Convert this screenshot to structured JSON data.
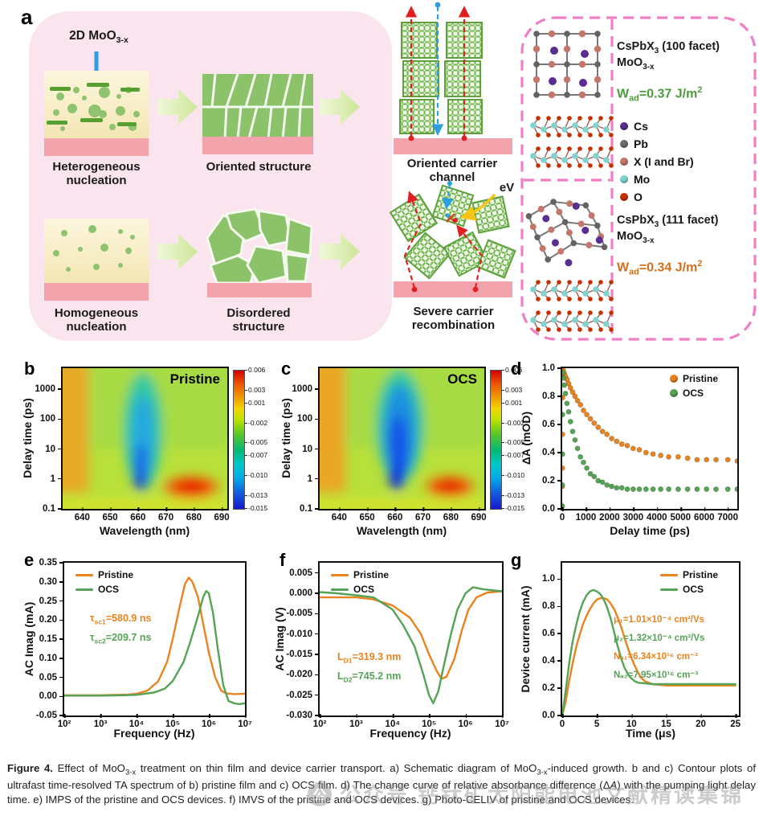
{
  "colors": {
    "pristine": "#E8831F",
    "ocs": "#55A355"
  },
  "panel_a": {
    "label": "a",
    "moo_label": [
      {
        "t": "2D MoO"
      },
      {
        "t": "3-x",
        "s": "sub"
      }
    ],
    "hetero_label": "Heterogeneous nucleation",
    "oriented_label": "Oriented structure",
    "homo_label": "Homogeneous nucleation",
    "disordered_label": "Disordered structure",
    "channel_label": "Oriented carrier channel",
    "recomb_label": "Severe carrier recombination",
    "ev_label": "eV",
    "facet100": [
      {
        "t": "CsPbX"
      },
      {
        "t": "3",
        "s": "sub"
      },
      {
        "t": " (100 facet)"
      }
    ],
    "facet100_moo": [
      {
        "t": "MoO"
      },
      {
        "t": "3-x",
        "s": "sub"
      }
    ],
    "wad100": [
      {
        "t": "W"
      },
      {
        "t": "ad",
        "s": "sub"
      },
      {
        "t": "=0.37 J/m"
      },
      {
        "t": "2",
        "s": "sup"
      }
    ],
    "wad100_color": "#4e9b3e",
    "facet111": [
      {
        "t": "CsPbX"
      },
      {
        "t": "3",
        "s": "sub"
      },
      {
        "t": " (111 facet)"
      }
    ],
    "facet111_moo": [
      {
        "t": "MoO"
      },
      {
        "t": "3-x",
        "s": "sub"
      }
    ],
    "wad111": [
      {
        "t": "W"
      },
      {
        "t": "ad",
        "s": "sub"
      },
      {
        "t": "=0.34 J/m"
      },
      {
        "t": "2",
        "s": "sup"
      }
    ],
    "wad111_color": "#d2701e",
    "legend": [
      {
        "name": "Cs",
        "color": "#5a2e91"
      },
      {
        "name": "Pb",
        "color": "#6e6e6e"
      },
      {
        "name": "X (I and Br)",
        "color": "#c4766a"
      },
      {
        "name": "Mo",
        "color": "#7fd4cf"
      },
      {
        "name": "O",
        "color": "#c63000"
      }
    ]
  },
  "panels": {
    "b": {
      "label": "b",
      "title": "Pristine",
      "xlabel": "Wavelength (nm)",
      "ylabel": "Delay time (ps)",
      "xticks": [
        "640",
        "650",
        "660",
        "670",
        "680",
        "690"
      ],
      "yticks": [
        "1000",
        "100",
        "10",
        "1",
        "0.1"
      ],
      "cbar": [
        "0.006",
        "0.003",
        "0.001",
        "-0.002",
        "-0.005",
        "-0.007",
        "-0.010",
        "-0.013",
        "-0.015"
      ]
    },
    "c": {
      "label": "c",
      "title": "OCS",
      "xlabel": "Wavelength (nm)",
      "ylabel": "Delay time (ps)",
      "xticks": [
        "640",
        "650",
        "660",
        "670",
        "680",
        "690"
      ],
      "yticks": [
        "1000",
        "100",
        "10",
        "1",
        "0.1"
      ],
      "cbar": [
        "0.006",
        "0.003",
        "0.001",
        "-0.002",
        "-0.005",
        "-0.007",
        "-0.010",
        "-0.013",
        "-0.015"
      ]
    },
    "d": {
      "label": "d",
      "xlabel": "Delay time (ps)",
      "ylabel": "ΔA (mOD)",
      "xticks": [
        "0",
        "1000",
        "2000",
        "3000",
        "4000",
        "5000",
        "6000",
        "7000"
      ],
      "yticks": [
        "1.0",
        "0.8",
        "0.6",
        "0.4",
        "0.2",
        "0.0"
      ],
      "legend": [
        "Pristine",
        "OCS"
      ]
    },
    "e": {
      "label": "e",
      "xlabel": "Frequency (Hz)",
      "ylabel": "AC Imag (mA)",
      "xticks": [
        "10²",
        "10³",
        "10⁴",
        "10⁵",
        "10⁶",
        "10⁷"
      ],
      "yticks": [
        "0.35",
        "0.30",
        "0.25",
        "0.20",
        "0.15",
        "0.10",
        "0.05",
        "0.00",
        "-0.05"
      ],
      "legend": [
        "Pristine",
        "OCS"
      ],
      "ann1": [
        {
          "t": "τ"
        },
        {
          "t": "sc1",
          "s": "sub"
        },
        {
          "t": "=580.9 ns"
        }
      ],
      "ann2": [
        {
          "t": "τ"
        },
        {
          "t": "sc2",
          "s": "sub"
        },
        {
          "t": "=209.7 ns"
        }
      ]
    },
    "f": {
      "label": "f",
      "xlabel": "Frequency (Hz)",
      "ylabel": "AC Imag (V)",
      "xticks": [
        "10²",
        "10³",
        "10⁴",
        "10⁵",
        "10⁶",
        "10⁷"
      ],
      "yticks": [
        "0.005",
        "0.000",
        "-0.005",
        "-0.010",
        "-0.015",
        "-0.020",
        "-0.025",
        "-0.030"
      ],
      "legend": [
        "Pristine",
        "OCS"
      ],
      "ann1": [
        {
          "t": "L"
        },
        {
          "t": "D1",
          "s": "sub"
        },
        {
          "t": "=319.3 nm"
        }
      ],
      "ann2": [
        {
          "t": "L"
        },
        {
          "t": "D2",
          "s": "sub"
        },
        {
          "t": "=745.2 nm"
        }
      ]
    },
    "g": {
      "label": "g",
      "xlabel": "Time (μs)",
      "ylabel": "Device current (mA)",
      "xticks": [
        "0",
        "5",
        "10",
        "15",
        "20",
        "25"
      ],
      "yticks": [
        "1.0",
        "0.8",
        "0.6",
        "0.4",
        "0.2",
        "0.0"
      ],
      "legend": [
        "Pristine",
        "OCS"
      ],
      "ann": [
        {
          "text": "μ₁=1.01×10⁻⁴ cm²/Vs",
          "color": "#E8831F"
        },
        {
          "text": "μ₂=1.32×10⁻⁴ cm²/Vs",
          "color": "#55A355"
        },
        {
          "text": "Nₐ₁=6.34×10¹⁶ cm⁻³",
          "color": "#E8831F"
        },
        {
          "text": "Nₐ₂=7.95×10¹⁶ cm⁻³",
          "color": "#55A355"
        }
      ]
    }
  },
  "chart_data": [
    {
      "id": "hm-b",
      "type": "heatmap",
      "title": "Pristine",
      "xlabel": "Wavelength (nm)",
      "ylabel": "Delay time (ps)",
      "x_range_nm": [
        633,
        692
      ],
      "y_range_ps": [
        0.1,
        5000
      ],
      "y_scale": "log",
      "colorbar_range": [
        -0.015,
        0.006
      ],
      "colorbar_ticks": [
        0.006,
        0.003,
        0.001,
        -0.002,
        -0.005,
        -0.007,
        -0.01,
        -0.013,
        -0.015
      ],
      "features": [
        {
          "name": "ground-state bleach (negative blue band)",
          "wavelength_nm": [
            648,
            668
          ],
          "delay_ps": [
            0.4,
            500
          ],
          "min_value": -0.015
        },
        {
          "name": "positive band at short wavelength edge",
          "wavelength_nm": [
            633,
            641
          ],
          "value": 0.004
        },
        {
          "name": "positive photoinduced absorption blob",
          "wavelength_nm": [
            668,
            690
          ],
          "delay_ps": [
            0.3,
            1.5
          ],
          "max_value": 0.006
        }
      ]
    },
    {
      "id": "hm-c",
      "type": "heatmap",
      "title": "OCS",
      "xlabel": "Wavelength (nm)",
      "ylabel": "Delay time (ps)",
      "x_range_nm": [
        633,
        692
      ],
      "y_range_ps": [
        0.1,
        5000
      ],
      "y_scale": "log",
      "colorbar_range": [
        -0.015,
        0.006
      ],
      "colorbar_ticks": [
        0.006,
        0.003,
        0.001,
        -0.002,
        -0.005,
        -0.007,
        -0.01,
        -0.013,
        -0.015
      ],
      "features": [
        {
          "name": "ground-state bleach (negative blue band, wider/longer-lived than pristine)",
          "wavelength_nm": [
            648,
            670
          ],
          "delay_ps": [
            0.4,
            2000
          ],
          "min_value": -0.015
        },
        {
          "name": "positive band at short wavelength edge",
          "wavelength_nm": [
            633,
            641
          ],
          "value": 0.004
        },
        {
          "name": "positive photoinduced absorption blob",
          "wavelength_nm": [
            670,
            690
          ],
          "delay_ps": [
            0.3,
            1.5
          ],
          "max_value": 0.006
        }
      ]
    },
    {
      "id": "chart-d",
      "type": "scatter",
      "xlabel": "Delay time (ps)",
      "ylabel": "ΔA (mOD)",
      "xlim": [
        0,
        7400
      ],
      "ylim": [
        0,
        1.0
      ],
      "series": [
        {
          "name": "Pristine",
          "color": "#E8831F",
          "x": [
            2,
            5,
            10,
            15,
            20,
            50,
            90,
            140,
            200,
            270,
            350,
            440,
            540,
            650,
            770,
            900,
            1040,
            1190,
            1350,
            1520,
            1700,
            1890,
            2090,
            2300,
            2520,
            2750,
            3000,
            3260,
            3540,
            3840,
            4160,
            4500,
            4900,
            5300,
            5700,
            6100,
            6500,
            7000,
            7400
          ],
          "y": [
            0.16,
            0.29,
            0.53,
            0.79,
            0.99,
            0.98,
            0.96,
            0.94,
            0.92,
            0.89,
            0.86,
            0.83,
            0.8,
            0.77,
            0.74,
            0.7,
            0.67,
            0.64,
            0.61,
            0.58,
            0.55,
            0.53,
            0.5,
            0.48,
            0.46,
            0.45,
            0.43,
            0.42,
            0.4,
            0.39,
            0.38,
            0.37,
            0.37,
            0.36,
            0.35,
            0.35,
            0.35,
            0.35,
            0.34
          ]
        },
        {
          "name": "OCS",
          "color": "#55A355",
          "x": [
            2,
            5,
            10,
            15,
            20,
            50,
            90,
            140,
            200,
            270,
            350,
            440,
            540,
            650,
            770,
            900,
            1040,
            1190,
            1350,
            1520,
            1700,
            1890,
            2090,
            2300,
            2520,
            2750,
            3000,
            3260,
            3540,
            3840,
            4160,
            4500,
            4900,
            5300,
            5700,
            6100,
            6500,
            7000,
            7400
          ],
          "y": [
            0.02,
            0.17,
            0.39,
            0.67,
            0.97,
            0.93,
            0.88,
            0.82,
            0.75,
            0.69,
            0.62,
            0.55,
            0.49,
            0.43,
            0.37,
            0.33,
            0.29,
            0.25,
            0.23,
            0.2,
            0.19,
            0.17,
            0.16,
            0.15,
            0.15,
            0.14,
            0.14,
            0.14,
            0.14,
            0.14,
            0.14,
            0.14,
            0.14,
            0.14,
            0.14,
            0.14,
            0.14,
            0.14,
            0.14
          ]
        }
      ]
    },
    {
      "id": "chart-e",
      "type": "line",
      "xscale": "log",
      "xlabel": "Frequency (Hz)",
      "ylabel": "AC Imag (mA)",
      "xlim": [
        100,
        10000000
      ],
      "ylim": [
        -0.05,
        0.35
      ],
      "series": [
        {
          "name": "Pristine",
          "color": "#E8831F",
          "x": [
            100,
            300,
            1000,
            3000,
            6000,
            10000,
            20000,
            40000,
            70000,
            100000,
            160000,
            220000,
            280000,
            350000,
            500000,
            700000,
            1000000,
            1500000,
            2200000,
            3000000,
            5000000,
            10000000
          ],
          "y": [
            0.003,
            0.003,
            0.003,
            0.004,
            0.005,
            0.007,
            0.015,
            0.04,
            0.09,
            0.15,
            0.24,
            0.295,
            0.311,
            0.3,
            0.26,
            0.19,
            0.115,
            0.05,
            0.015,
            0.008,
            0.006,
            0.007
          ]
        },
        {
          "name": "OCS",
          "color": "#55A355",
          "x": [
            100,
            1000,
            5000,
            10000,
            30000,
            60000,
            100000,
            200000,
            300000,
            500000,
            700000,
            850000,
            1000000,
            1300000,
            1800000,
            2500000,
            3500000,
            5000000,
            7000000,
            10000000
          ],
          "y": [
            0.002,
            0.002,
            0.003,
            0.004,
            0.01,
            0.02,
            0.04,
            0.09,
            0.14,
            0.21,
            0.26,
            0.276,
            0.27,
            0.22,
            0.12,
            0.03,
            -0.012,
            -0.018,
            -0.02,
            -0.018
          ]
        }
      ],
      "annotations": [
        {
          "text": "τ_sc1=580.9 ns"
        },
        {
          "text": "τ_sc2=209.7 ns"
        }
      ]
    },
    {
      "id": "chart-f",
      "type": "line",
      "xscale": "log",
      "xlabel": "Frequency (Hz)",
      "ylabel": "AC Imag (V)",
      "xlim": [
        100,
        10000000
      ],
      "ylim": [
        -0.03,
        0.0075
      ],
      "series": [
        {
          "name": "Pristine",
          "color": "#E8831F",
          "x": [
            100,
            300,
            1000,
            3000,
            10000,
            30000,
            60000,
            100000,
            160000,
            220000,
            300000,
            500000,
            800000,
            1200000,
            2000000,
            4000000,
            10000000
          ],
          "y": [
            -0.001,
            -0.001,
            -0.001,
            -0.0015,
            -0.003,
            -0.006,
            -0.01,
            -0.015,
            -0.019,
            -0.021,
            -0.0205,
            -0.016,
            -0.009,
            -0.004,
            -0.001,
            0.0002,
            0.0005
          ]
        },
        {
          "name": "OCS",
          "color": "#55A355",
          "x": [
            100,
            300,
            1000,
            3000,
            10000,
            20000,
            40000,
            70000,
            100000,
            130000,
            180000,
            250000,
            400000,
            600000,
            1000000,
            1600000,
            3000000,
            10000000
          ],
          "y": [
            0.0003,
            0,
            -0.0005,
            -0.001,
            -0.004,
            -0.008,
            -0.013,
            -0.02,
            -0.025,
            -0.027,
            -0.024,
            -0.018,
            -0.01,
            -0.004,
            0,
            0.0015,
            0.001,
            0.0005
          ]
        }
      ],
      "annotations": [
        {
          "text": "L_D1=319.3 nm"
        },
        {
          "text": "L_D2=745.2 nm"
        }
      ]
    },
    {
      "id": "chart-g",
      "type": "line",
      "xlabel": "Time (μs)",
      "ylabel": "Device current (mA)",
      "xlim": [
        0,
        25.5
      ],
      "ylim": [
        0,
        1.12
      ],
      "series": [
        {
          "name": "Pristine",
          "color": "#E8831F",
          "x": [
            0,
            0.5,
            1,
            1.5,
            2,
            2.5,
            3,
            3.5,
            4,
            4.5,
            5,
            5.5,
            6,
            6.5,
            7,
            7.5,
            8,
            8.5,
            9,
            9.5,
            10,
            10.5,
            11,
            11.5,
            12,
            13,
            14,
            15,
            17,
            20,
            25
          ],
          "y": [
            0,
            0.1,
            0.25,
            0.38,
            0.5,
            0.59,
            0.67,
            0.73,
            0.78,
            0.82,
            0.85,
            0.86,
            0.86,
            0.85,
            0.82,
            0.78,
            0.72,
            0.65,
            0.57,
            0.49,
            0.42,
            0.36,
            0.31,
            0.27,
            0.25,
            0.23,
            0.225,
            0.22,
            0.22,
            0.22,
            0.22
          ]
        },
        {
          "name": "OCS",
          "color": "#55A355",
          "x": [
            0,
            0.5,
            1,
            1.5,
            2,
            2.5,
            3,
            3.5,
            4,
            4.5,
            5,
            5.5,
            6,
            6.5,
            7,
            7.5,
            8,
            8.5,
            9,
            9.5,
            10,
            10.5,
            11,
            12,
            13,
            15,
            17,
            20,
            25
          ],
          "y": [
            0,
            0.18,
            0.38,
            0.54,
            0.66,
            0.76,
            0.83,
            0.88,
            0.91,
            0.92,
            0.91,
            0.89,
            0.85,
            0.79,
            0.71,
            0.61,
            0.51,
            0.42,
            0.35,
            0.3,
            0.27,
            0.25,
            0.24,
            0.235,
            0.23,
            0.23,
            0.23,
            0.23,
            0.23
          ]
        }
      ],
      "annotations": [
        {
          "text": "μ₁=1.01×10⁻⁴ cm²/Vs"
        },
        {
          "text": "μ₂=1.32×10⁻⁴ cm²/Vs"
        },
        {
          "text": "Nₐ₁=6.34×10¹⁶ cm⁻³"
        },
        {
          "text": "Nₐ₂=7.95×10¹⁶ cm⁻³"
        }
      ]
    }
  ],
  "caption_segments": [
    {
      "t": "Figure 4.",
      "s": "b"
    },
    {
      "t": "  Effect of MoO"
    },
    {
      "t": "3-x",
      "s": "sub"
    },
    {
      "t": " treatment on thin film and device carrier transport. a) Schematic diagram of MoO"
    },
    {
      "t": "3-x",
      "s": "sub"
    },
    {
      "t": "-induced growth. b and c) Contour plots of ultrafast time-resolved TA spectrum of b) pristine film and c) OCS film. d) The change curve of relative absorbance difference (Δ"
    },
    {
      "t": "A",
      "s": "i"
    },
    {
      "t": ") with the pumping light delay time. e) IMPS of the pristine and OCS devices. f) IMVS of the pristine and OCS devices. g) Photo-CELIV of pristine and OCS devices."
    }
  ],
  "watermark": {
    "icon": "公",
    "prefix": "公众号",
    "text": "钙钛矿太阳能电池文献精读集锦"
  }
}
